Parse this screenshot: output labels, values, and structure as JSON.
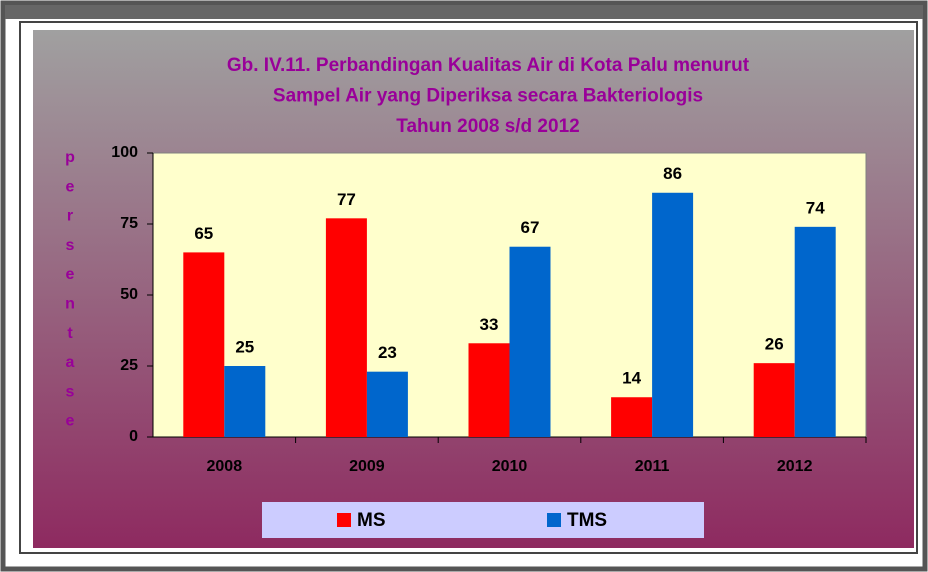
{
  "chart_data": {
    "type": "bar",
    "title": [
      "Gb. IV.11. Perbandingan Kualitas Air di Kota Palu menurut",
      "Sampel Air yang Diperiksa secara Bakteriologis",
      "Tahun 2008 s/d 2012"
    ],
    "y_label": "persentase",
    "categories": [
      "2008",
      "2009",
      "2010",
      "2011",
      "2012"
    ],
    "series": [
      {
        "name": "MS",
        "color": "#ff0000",
        "values": [
          65,
          77,
          33,
          14,
          26
        ]
      },
      {
        "name": "TMS",
        "color": "#0066cc",
        "values": [
          25,
          23,
          67,
          86,
          74
        ]
      }
    ],
    "ylim": [
      0,
      100
    ],
    "yticks": [
      0,
      25,
      50,
      75,
      100
    ],
    "legend": "bottom"
  }
}
